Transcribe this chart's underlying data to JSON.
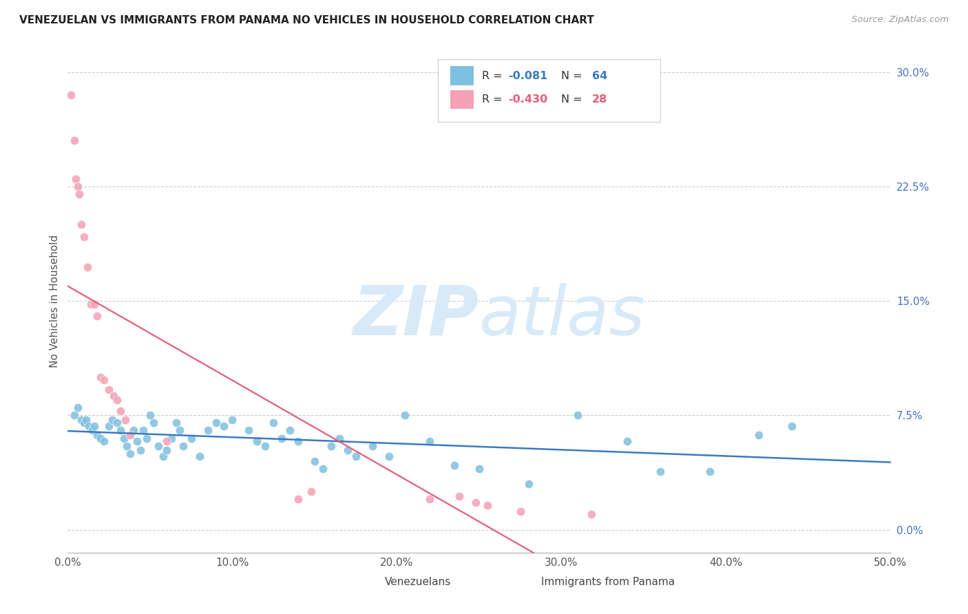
{
  "title": "VENEZUELAN VS IMMIGRANTS FROM PANAMA NO VEHICLES IN HOUSEHOLD CORRELATION CHART",
  "source": "Source: ZipAtlas.com",
  "ylabel": "No Vehicles in Household",
  "xlabel_ticks": [
    "0.0%",
    "10.0%",
    "20.0%",
    "30.0%",
    "40.0%",
    "50.0%"
  ],
  "xlabel_vals": [
    0.0,
    0.1,
    0.2,
    0.3,
    0.4,
    0.5
  ],
  "ylabel_ticks": [
    "0.0%",
    "7.5%",
    "15.0%",
    "22.5%",
    "30.0%"
  ],
  "ylabel_vals": [
    0.0,
    0.075,
    0.15,
    0.225,
    0.3
  ],
  "xlim": [
    0.0,
    0.5
  ],
  "ylim": [
    -0.015,
    0.315
  ],
  "legend1_r": "-0.081",
  "legend1_n": "64",
  "legend2_r": "-0.430",
  "legend2_n": "28",
  "legend_labels": [
    "Venezuelans",
    "Immigrants from Panama"
  ],
  "blue_color": "#7fbfdf",
  "pink_color": "#f4a0b5",
  "line_blue": "#3a7abf",
  "line_pink": "#e0607a",
  "watermark_color": "#d8eaf7",
  "blue_x": [
    0.004,
    0.006,
    0.008,
    0.01,
    0.011,
    0.013,
    0.015,
    0.016,
    0.018,
    0.02,
    0.022,
    0.025,
    0.027,
    0.03,
    0.032,
    0.034,
    0.036,
    0.038,
    0.04,
    0.042,
    0.044,
    0.046,
    0.048,
    0.05,
    0.052,
    0.055,
    0.058,
    0.06,
    0.063,
    0.066,
    0.068,
    0.07,
    0.075,
    0.08,
    0.085,
    0.09,
    0.095,
    0.1,
    0.11,
    0.115,
    0.12,
    0.125,
    0.13,
    0.135,
    0.14,
    0.15,
    0.155,
    0.16,
    0.165,
    0.17,
    0.175,
    0.185,
    0.195,
    0.205,
    0.22,
    0.235,
    0.25,
    0.28,
    0.31,
    0.34,
    0.36,
    0.39,
    0.42,
    0.44
  ],
  "blue_y": [
    0.075,
    0.08,
    0.072,
    0.07,
    0.072,
    0.068,
    0.065,
    0.068,
    0.062,
    0.06,
    0.058,
    0.068,
    0.072,
    0.07,
    0.065,
    0.06,
    0.055,
    0.05,
    0.065,
    0.058,
    0.052,
    0.065,
    0.06,
    0.075,
    0.07,
    0.055,
    0.048,
    0.052,
    0.06,
    0.07,
    0.065,
    0.055,
    0.06,
    0.048,
    0.065,
    0.07,
    0.068,
    0.072,
    0.065,
    0.058,
    0.055,
    0.07,
    0.06,
    0.065,
    0.058,
    0.045,
    0.04,
    0.055,
    0.06,
    0.052,
    0.048,
    0.055,
    0.048,
    0.075,
    0.058,
    0.042,
    0.04,
    0.03,
    0.075,
    0.058,
    0.038,
    0.038,
    0.062,
    0.068
  ],
  "pink_x": [
    0.002,
    0.004,
    0.005,
    0.006,
    0.007,
    0.008,
    0.01,
    0.012,
    0.014,
    0.016,
    0.018,
    0.02,
    0.022,
    0.025,
    0.028,
    0.03,
    0.032,
    0.035,
    0.038,
    0.06,
    0.14,
    0.148,
    0.22,
    0.238,
    0.248,
    0.255,
    0.275,
    0.318
  ],
  "pink_y": [
    0.285,
    0.255,
    0.23,
    0.225,
    0.22,
    0.2,
    0.192,
    0.172,
    0.148,
    0.148,
    0.14,
    0.1,
    0.098,
    0.092,
    0.088,
    0.085,
    0.078,
    0.072,
    0.062,
    0.058,
    0.02,
    0.025,
    0.02,
    0.022,
    0.018,
    0.016,
    0.012,
    0.01
  ]
}
